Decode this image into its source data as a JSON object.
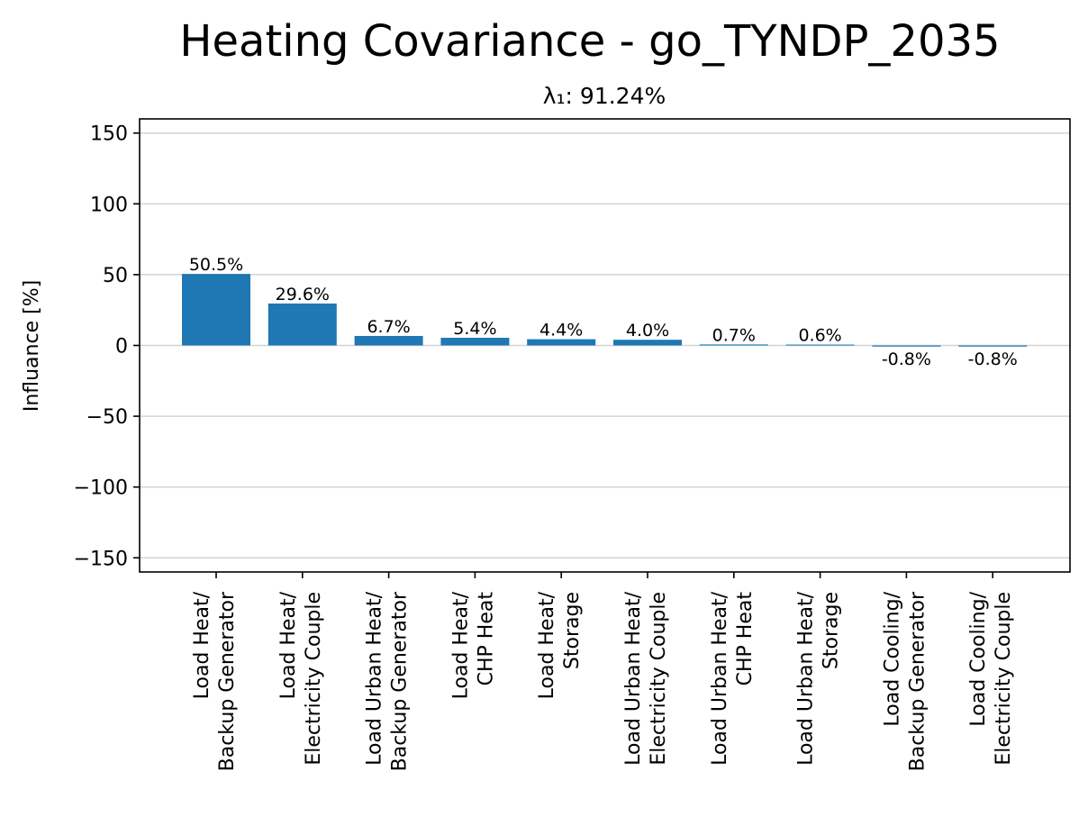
{
  "chart_data": {
    "type": "bar",
    "title": "Heating Covariance - go_TYNDP_2035",
    "subtitle": "λ₁: 91.24%",
    "ylabel": "Influance [%]",
    "xlabel": "",
    "ylim": [
      -160,
      160
    ],
    "yticks": [
      150,
      100,
      50,
      0,
      -50,
      -100,
      -150
    ],
    "ytick_labels": [
      "150",
      "100",
      "50",
      "0",
      "−50",
      "−100",
      "−150"
    ],
    "grid": "horizontal",
    "color": "#1f77b4",
    "categories": [
      "Load Heat/ Backup Generator",
      "Load Heat/ Electricity Couple",
      "Load Urban Heat/ Backup Generator",
      "Load Heat/ CHP Heat",
      "Load Heat/ Storage",
      "Load Urban Heat/ Electricity Couple",
      "Load Urban Heat/ CHP Heat",
      "Load Urban Heat/ Storage",
      "Load Cooling/ Backup Generator",
      "Load Cooling/ Electricity Couple"
    ],
    "category_lines": [
      [
        "Load Heat/",
        "Backup Generator"
      ],
      [
        "Load Heat/",
        "Electricity Couple"
      ],
      [
        "Load Urban Heat/",
        "Backup Generator"
      ],
      [
        "Load Heat/",
        "CHP Heat"
      ],
      [
        "Load Heat/",
        "Storage"
      ],
      [
        "Load Urban Heat/",
        "Electricity Couple"
      ],
      [
        "Load Urban Heat/",
        "CHP Heat"
      ],
      [
        "Load Urban Heat/",
        "Storage"
      ],
      [
        "Load Cooling/",
        "Backup Generator"
      ],
      [
        "Load Cooling/",
        "Electricity Couple"
      ]
    ],
    "values": [
      50.5,
      29.6,
      6.7,
      5.4,
      4.4,
      4.0,
      0.7,
      0.6,
      -0.8,
      -0.8
    ],
    "value_labels": [
      "50.5%",
      "29.6%",
      "6.7%",
      "5.4%",
      "4.4%",
      "4.0%",
      "0.7%",
      "0.6%",
      "-0.8%",
      "-0.8%"
    ]
  }
}
